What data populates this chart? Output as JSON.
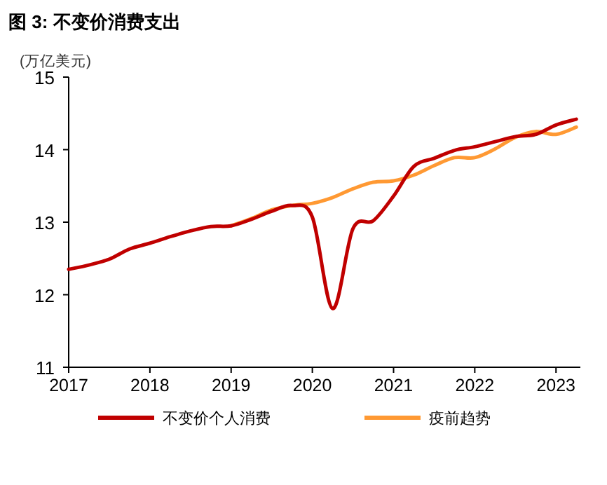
{
  "chart_data": {
    "type": "line",
    "title": "图 3: 不变价消费支出",
    "ylabel": "(万亿美元)",
    "xlim": [
      2017,
      2023.3
    ],
    "xticks": [
      2017,
      2018,
      2019,
      2020,
      2021,
      2022,
      2023
    ],
    "ylim": [
      11,
      15
    ],
    "yticks": [
      11,
      12,
      13,
      14,
      15
    ],
    "grid": false,
    "legend": "bottom",
    "marker": "none",
    "line_style": "solid",
    "series": [
      {
        "name": "不变价个人消费",
        "color": "#c00000",
        "x": [
          2017,
          2017.25,
          2017.5,
          2017.75,
          2018,
          2018.25,
          2018.5,
          2018.75,
          2019,
          2019.25,
          2019.5,
          2019.75,
          2020,
          2020.25,
          2020.5,
          2020.75,
          2021,
          2021.25,
          2021.5,
          2021.75,
          2022,
          2022.25,
          2022.5,
          2022.75,
          2023,
          2023.25
        ],
        "values": [
          12.35,
          12.41,
          12.49,
          12.63,
          12.71,
          12.8,
          12.88,
          12.94,
          12.95,
          13.04,
          13.15,
          13.23,
          13.07,
          11.81,
          12.91,
          13.02,
          13.36,
          13.77,
          13.88,
          13.99,
          14.04,
          14.11,
          14.18,
          14.21,
          14.34,
          14.42
        ]
      },
      {
        "name": "疫前趋势",
        "color": "#ff9933",
        "x": [
          2019,
          2019.25,
          2019.5,
          2019.75,
          2020,
          2020.25,
          2020.5,
          2020.75,
          2021,
          2021.25,
          2021.5,
          2021.75,
          2022,
          2022.25,
          2022.5,
          2022.75,
          2023,
          2023.25
        ],
        "values": [
          12.95,
          13.05,
          13.17,
          13.23,
          13.26,
          13.34,
          13.46,
          13.55,
          13.57,
          13.65,
          13.78,
          13.89,
          13.89,
          14.01,
          14.17,
          14.25,
          14.21,
          14.31
        ]
      }
    ]
  }
}
